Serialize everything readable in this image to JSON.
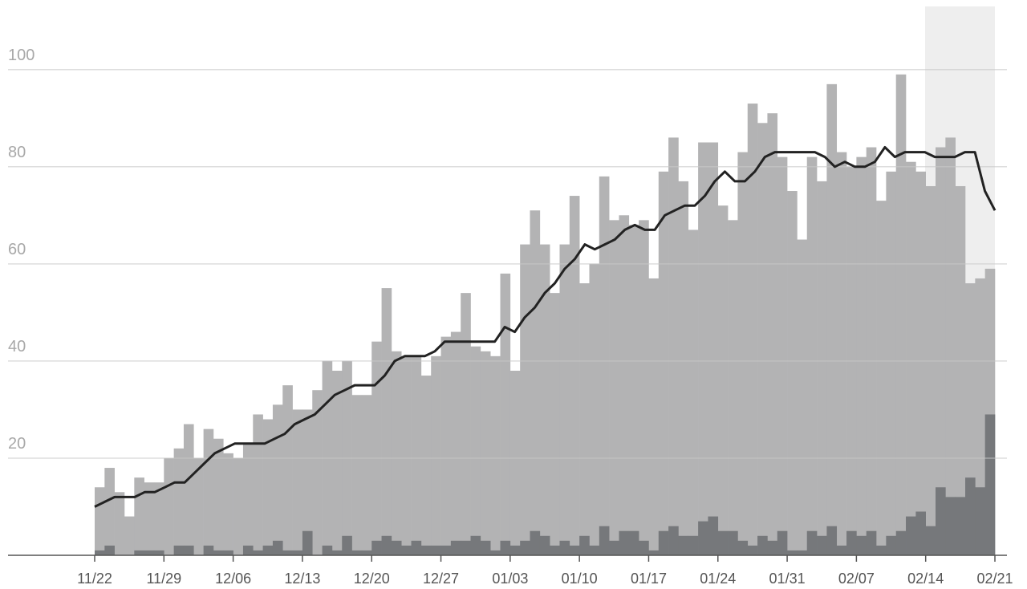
{
  "chart_data": {
    "type": "bar",
    "xlim": [
      0,
      91
    ],
    "xticks": [
      {
        "value": 0,
        "label": "11/22"
      },
      {
        "value": 7,
        "label": "11/29"
      },
      {
        "value": 14,
        "label": "12/06"
      },
      {
        "value": 21,
        "label": "12/13"
      },
      {
        "value": 28,
        "label": "12/20"
      },
      {
        "value": 35,
        "label": "12/27"
      },
      {
        "value": 42,
        "label": "01/03"
      },
      {
        "value": 49,
        "label": "01/10"
      },
      {
        "value": 56,
        "label": "01/17"
      },
      {
        "value": 63,
        "label": "01/24"
      },
      {
        "value": 70,
        "label": "01/31"
      },
      {
        "value": 77,
        "label": "02/07"
      },
      {
        "value": 84,
        "label": "02/14"
      },
      {
        "value": 91,
        "label": "02/21"
      }
    ],
    "ylim": [
      0,
      113
    ],
    "yticks": [
      20,
      40,
      60,
      80,
      100
    ],
    "grid": true,
    "series": [
      {
        "color": "#b3b3b4",
        "values": [
          14,
          18,
          13,
          8,
          16,
          15,
          15,
          20,
          22,
          27,
          20,
          26,
          24,
          21,
          20,
          23,
          29,
          28,
          31,
          35,
          30,
          30,
          34,
          40,
          38,
          40,
          33,
          33,
          44,
          55,
          42,
          41,
          41,
          37,
          41,
          45,
          46,
          54,
          43,
          42,
          41,
          58,
          38,
          64,
          71,
          64,
          54,
          64,
          74,
          56,
          60,
          78,
          69,
          70,
          68,
          69,
          57,
          79,
          86,
          77,
          67,
          85,
          85,
          72,
          69,
          83,
          93,
          89,
          91,
          82,
          75,
          65,
          82,
          77,
          97,
          83,
          80,
          82,
          84,
          73,
          79,
          99,
          81,
          79,
          76,
          84,
          86,
          76,
          56,
          57,
          59
        ]
      },
      {
        "color": "#76787b",
        "values": [
          1,
          2,
          0,
          0,
          1,
          1,
          1,
          0,
          2,
          2,
          0,
          2,
          1,
          1,
          0,
          2,
          1,
          2,
          3,
          1,
          1,
          5,
          0,
          2,
          1,
          4,
          1,
          1,
          3,
          4,
          3,
          2,
          3,
          2,
          2,
          2,
          3,
          3,
          4,
          3,
          1,
          3,
          2,
          3,
          5,
          4,
          2,
          3,
          2,
          4,
          2,
          6,
          3,
          5,
          5,
          3,
          1,
          5,
          6,
          4,
          4,
          7,
          8,
          5,
          5,
          3,
          2,
          4,
          3,
          5,
          1,
          1,
          5,
          4,
          6,
          2,
          5,
          4,
          5,
          2,
          4,
          5,
          8,
          9,
          6,
          14,
          12,
          12,
          16,
          14,
          29
        ]
      },
      {
        "type": "line",
        "color": "#222222",
        "values": [
          10,
          11,
          12,
          12,
          12,
          13,
          13,
          14,
          15,
          15,
          17,
          19,
          21,
          22,
          23,
          23,
          23,
          23,
          24,
          25,
          27,
          28,
          29,
          31,
          33,
          34,
          35,
          35,
          35,
          37,
          40,
          41,
          41,
          41,
          42,
          44,
          44,
          44,
          44,
          44,
          44,
          47,
          46,
          49,
          51,
          54,
          56,
          59,
          61,
          64,
          63,
          64,
          65,
          67,
          68,
          67,
          67,
          70,
          71,
          72,
          72,
          74,
          77,
          79,
          77,
          77,
          79,
          82,
          83,
          83,
          83,
          83,
          83,
          82,
          80,
          81,
          80,
          80,
          81,
          84,
          82,
          83,
          83,
          83,
          82,
          82,
          82,
          83,
          83,
          75,
          71
        ]
      }
    ]
  }
}
